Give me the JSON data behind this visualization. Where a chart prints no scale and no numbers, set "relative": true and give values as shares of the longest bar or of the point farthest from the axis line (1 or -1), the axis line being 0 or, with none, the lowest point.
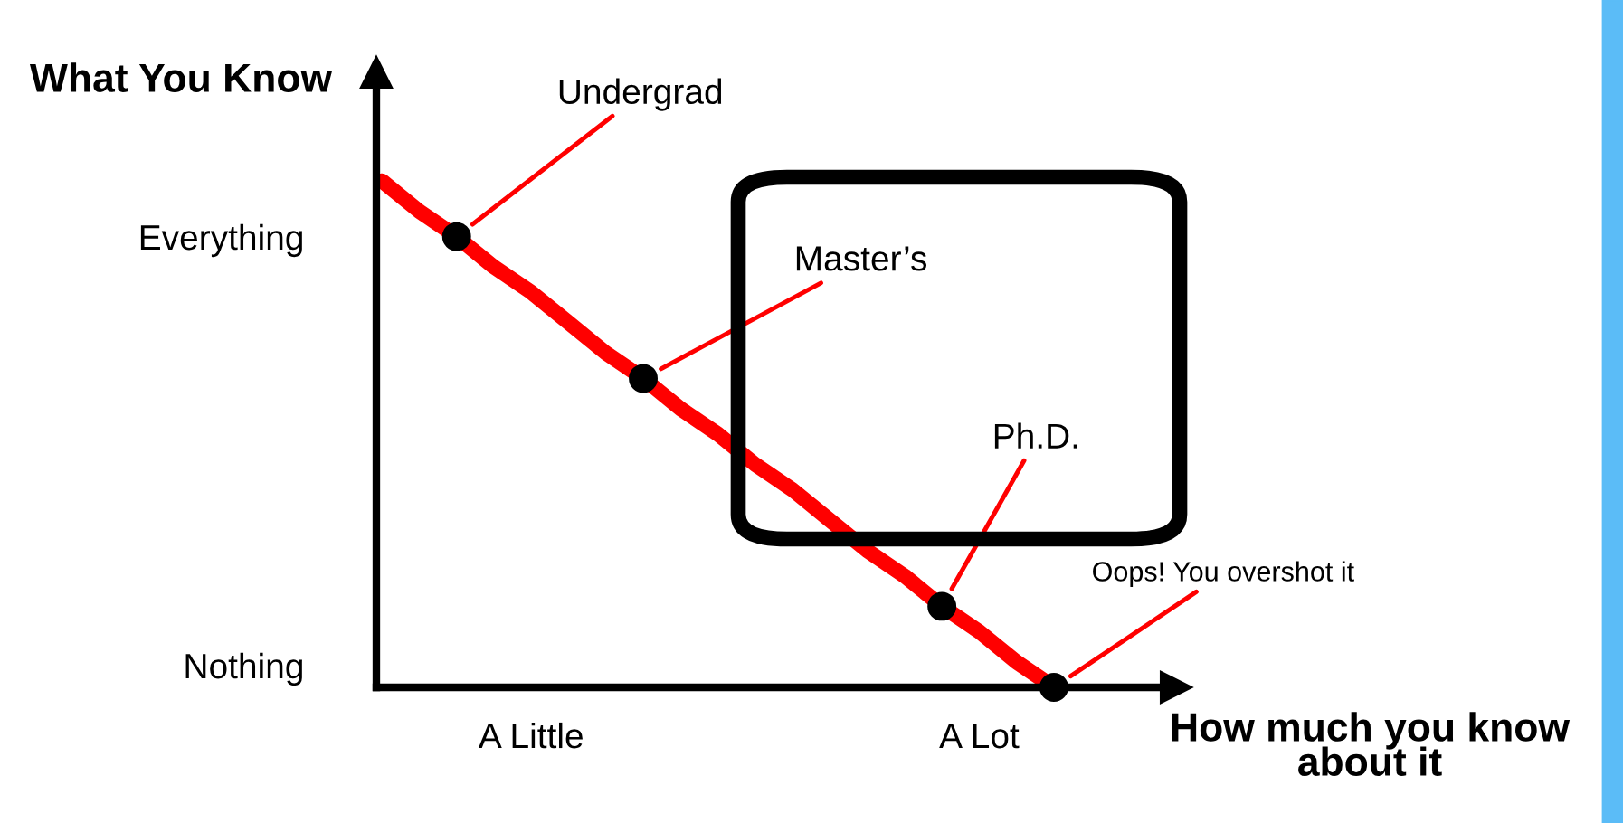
{
  "chart_data": {
    "type": "line",
    "relative": true,
    "ylabel": "What You Know",
    "xlabel": "How much you know about it",
    "categories": [
      null,
      null,
      null,
      null,
      "A Little",
      null,
      null,
      null,
      null,
      null,
      null,
      null,
      null,
      null,
      null,
      null,
      "A Lot",
      null,
      null
    ],
    "series": [
      {
        "color": "#ff0000",
        "values": [
          1.0,
          0.94,
          0.89,
          0.83,
          0.78,
          0.72,
          0.66,
          0.61,
          0.55,
          0.5,
          0.44,
          0.39,
          0.33,
          0.27,
          0.22,
          0.16,
          0.11,
          0.05,
          0
        ]
      },
      {
        "type": "scatter",
        "color": "#000000",
        "marker": "circle",
        "values": [
          null,
          null,
          0.89,
          null,
          null,
          null,
          null,
          0.61,
          null,
          null,
          null,
          null,
          null,
          null,
          null,
          0.16,
          null,
          null,
          0
        ]
      }
    ],
    "annotations": [
      "Everything",
      "Nothing",
      "Undergrad",
      "Master’s",
      "Ph.D.",
      "Oops! You overshot it"
    ]
  }
}
